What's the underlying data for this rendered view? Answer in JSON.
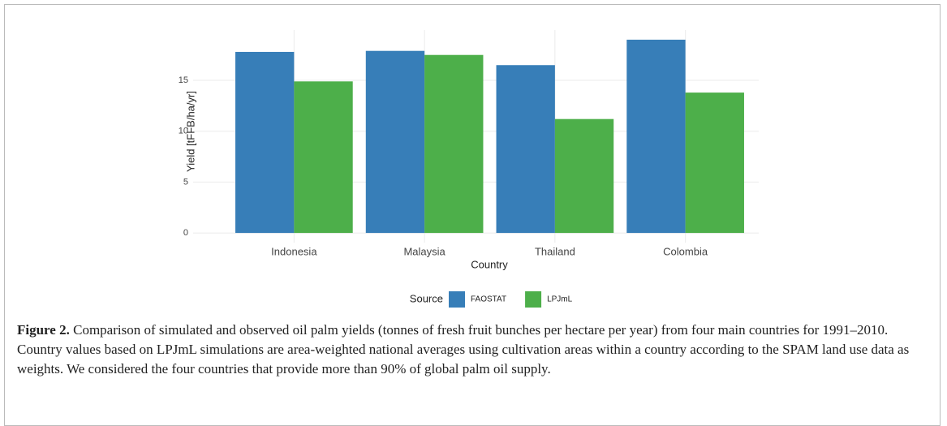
{
  "chart_data": {
    "type": "bar",
    "categories": [
      "Indonesia",
      "Malaysia",
      "Thailand",
      "Colombia"
    ],
    "series": [
      {
        "name": "FAOSTAT",
        "color": "#377eb8",
        "values": [
          17.8,
          17.9,
          16.5,
          19.0
        ]
      },
      {
        "name": "LPJmL",
        "color": "#4daf4a",
        "values": [
          14.9,
          17.5,
          11.2,
          13.8
        ]
      }
    ],
    "x_label": "Country",
    "y_label": "Yield [tFFB/ha/yr]",
    "legend_title": "Source",
    "legend_position": "bottom",
    "ylim": [
      -0.95,
      19.95
    ],
    "yticks": [
      0,
      5,
      10,
      15
    ],
    "grid": true
  },
  "caption": {
    "label": "Figure 2.",
    "text": "Comparison of simulated and observed oil palm yields (tonnes of fresh fruit bunches per hectare per year) from four main countries for 1991–2010. Country values based on LPJmL simulations are area-weighted national averages using cultivation areas within a country according to the SPAM land use data as weights. We considered the four countries that provide more than 90% of global palm oil supply."
  }
}
